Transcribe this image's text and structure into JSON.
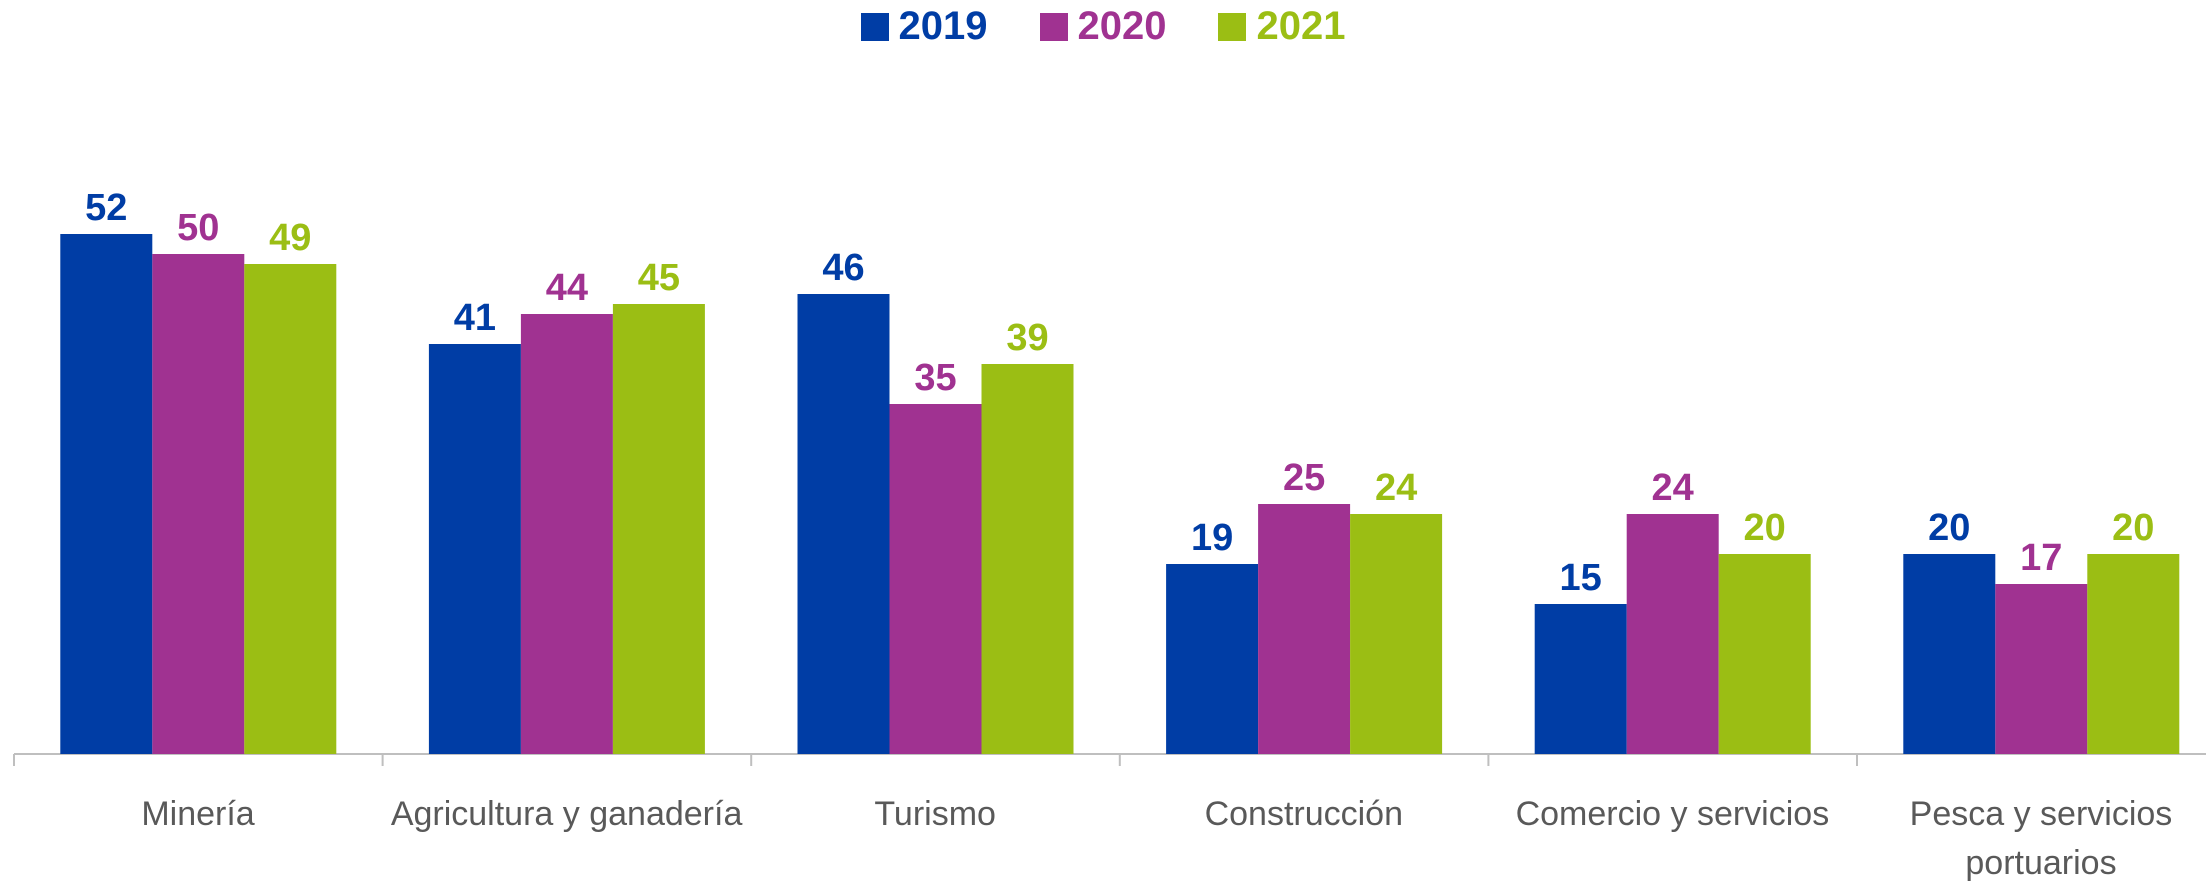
{
  "chart_data": {
    "type": "bar",
    "categories": [
      "Minería",
      "Agricultura y ganadería",
      "Turismo",
      "Construcción",
      "Comercio y servicios",
      "Pesca y servicios portuarios"
    ],
    "series": [
      {
        "name": "2019",
        "color": "#003da5",
        "values": [
          52,
          41,
          46,
          19,
          15,
          20
        ]
      },
      {
        "name": "2020",
        "color": "#a03291",
        "values": [
          50,
          44,
          35,
          25,
          24,
          17
        ]
      },
      {
        "name": "2021",
        "color": "#9bbe14",
        "values": [
          49,
          45,
          39,
          24,
          20,
          20
        ]
      }
    ],
    "legend": "top"
  }
}
